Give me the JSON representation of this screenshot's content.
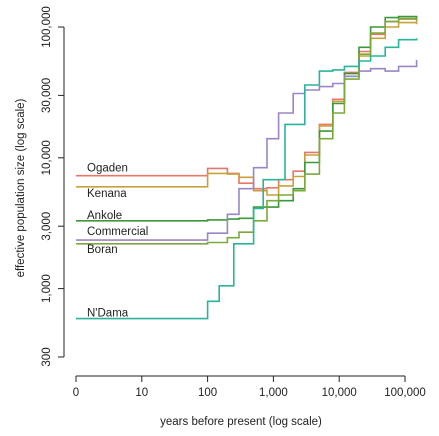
{
  "chart_data": {
    "type": "line",
    "title": "",
    "xlabel": "years before present (log scale)",
    "ylabel": "effective population size (log scale)",
    "x_scale": "log",
    "y_scale": "log",
    "xlim": [
      1,
      150000
    ],
    "ylim": [
      250,
      130000
    ],
    "x_ticks": [
      1,
      10,
      100,
      1000,
      10000,
      100000
    ],
    "x_tick_labels": [
      "0",
      "10",
      "100",
      "1,000",
      "10,000",
      "100,000"
    ],
    "y_ticks": [
      300,
      1000,
      3000,
      10000,
      30000,
      100000
    ],
    "y_tick_labels": [
      "300",
      "1,000",
      "3,000",
      "10,000",
      "30,000",
      "100,000"
    ],
    "grid": false,
    "legend": "inline labels at left",
    "series": [
      {
        "name": "Ogaden",
        "color": "#e8766b",
        "x": [
          1,
          50,
          100,
          200,
          300,
          500,
          800,
          1200,
          2000,
          3000,
          5000,
          8000,
          12000,
          20000,
          30000,
          50000,
          80000,
          150000
        ],
        "y": [
          7300,
          7300,
          8300,
          7600,
          6400,
          5800,
          5900,
          6800,
          7900,
          11000,
          18000,
          28000,
          45000,
          65000,
          88000,
          110000,
          115000,
          110000
        ]
      },
      {
        "name": "Kenana",
        "color": "#c9a13a",
        "x": [
          1,
          50,
          100,
          200,
          300,
          500,
          800,
          1200,
          2000,
          3000,
          5000,
          8000,
          12000,
          20000,
          30000,
          50000,
          80000,
          150000
        ],
        "y": [
          6000,
          6000,
          7600,
          7500,
          7100,
          5600,
          5200,
          6100,
          7200,
          10500,
          17500,
          27000,
          42000,
          60000,
          82000,
          100000,
          108000,
          105000
        ]
      },
      {
        "name": "Ankole",
        "color": "#3a9a3a",
        "x": [
          1,
          50,
          100,
          200,
          300,
          500,
          800,
          1200,
          2000,
          3000,
          5000,
          8000,
          12000,
          20000,
          30000,
          50000,
          80000,
          150000
        ],
        "y": [
          3300,
          3300,
          3350,
          3400,
          3450,
          4200,
          4200,
          4700,
          5800,
          9200,
          16000,
          26000,
          44000,
          70000,
          100000,
          118000,
          120000,
          115000
        ]
      },
      {
        "name": "Commercial",
        "color": "#9b85c6",
        "x": [
          1,
          50,
          100,
          200,
          300,
          500,
          800,
          1200,
          2000,
          3000,
          5000,
          8000,
          12000,
          20000,
          30000,
          50000,
          80000,
          150000
        ],
        "y": [
          2350,
          2350,
          2650,
          3700,
          5800,
          8400,
          14000,
          22000,
          31000,
          33000,
          35000,
          37000,
          42000,
          46000,
          48000,
          46000,
          50000,
          56000
        ]
      },
      {
        "name": "Boran",
        "color": "#7aaa3a",
        "x": [
          1,
          50,
          100,
          200,
          300,
          500,
          800,
          1200,
          2000,
          3000,
          5000,
          8000,
          12000,
          20000,
          30000,
          50000,
          80000,
          150000
        ],
        "y": [
          2200,
          2200,
          2250,
          2450,
          2700,
          3300,
          4700,
          5200,
          5600,
          7500,
          14000,
          22000,
          40000,
          62000,
          90000,
          110000,
          116000,
          112000
        ]
      },
      {
        "name": "N'Dama",
        "color": "#2ab59a",
        "x": [
          1,
          50,
          100,
          150,
          250,
          500,
          700,
          1500,
          3000,
          5000,
          8000,
          12000,
          20000,
          30000,
          50000,
          80000,
          150000
        ],
        "y": [
          590,
          590,
          800,
          1050,
          2200,
          4100,
          6800,
          18000,
          36000,
          46000,
          47000,
          50000,
          55000,
          60000,
          70000,
          80000,
          82000
        ]
      }
    ]
  }
}
